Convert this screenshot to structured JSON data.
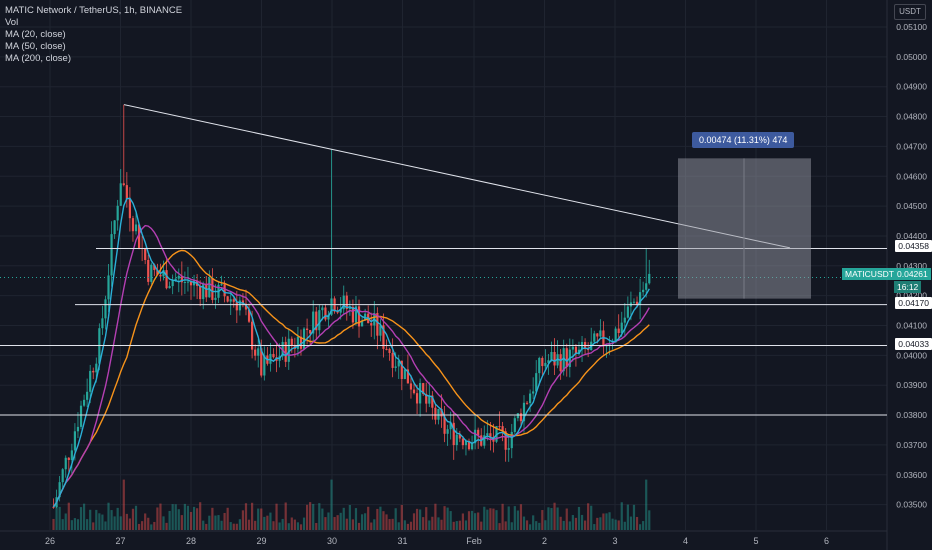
{
  "legend": {
    "title": "MATIC Network / TetherUS, 1h, BINANCE",
    "vol": "Vol",
    "ma20": "MA (20, close)",
    "ma50": "MA (50, close)",
    "ma200": "MA (200, close)"
  },
  "axis": {
    "unit": "USDT",
    "price_ticks": [
      "0.05100",
      "0.05000",
      "0.04900",
      "0.04800",
      "0.04700",
      "0.04600",
      "0.04500",
      "0.04400",
      "0.04300",
      "0.04200",
      "0.04100",
      "0.04000",
      "0.03900",
      "0.03800",
      "0.03700",
      "0.03600",
      "0.03500"
    ],
    "time_ticks": [
      "26",
      "27",
      "28",
      "29",
      "30",
      "31",
      "Feb",
      "2",
      "3",
      "4",
      "5",
      "6"
    ]
  },
  "tags": {
    "level_1": "0.04358",
    "level_2": "0.04170",
    "level_3": "0.04033",
    "symbol": "MATICUSDT",
    "last_price": "0.04261",
    "countdown": "16:12"
  },
  "measure": {
    "label": "0.00474 (11.31%) 474"
  },
  "colors": {
    "up": "#26a69a",
    "down": "#ef5350",
    "ma20": "#2ab0d8",
    "ma50": "#b43fb3",
    "ma200": "#f7931a",
    "background": "#131722"
  },
  "chart_data": {
    "type": "candlestick",
    "symbol": "MATIC Network / TetherUS",
    "interval": "1h",
    "exchange": "BINANCE",
    "x_axis": [
      "26",
      "27",
      "28",
      "29",
      "30",
      "31",
      "Feb",
      "2",
      "3",
      "4",
      "5",
      "6"
    ],
    "ylim": [
      0.0343,
      0.0518
    ],
    "last_price": 0.04261,
    "approx_close_path": [
      {
        "t": "26",
        "price": 0.0345
      },
      {
        "t": "26.7",
        "price": 0.0405
      },
      {
        "t": "27",
        "price": 0.046
      },
      {
        "t": "27.4",
        "price": 0.0428
      },
      {
        "t": "28",
        "price": 0.0424
      },
      {
        "t": "28.7",
        "price": 0.0418
      },
      {
        "t": "29",
        "price": 0.0395
      },
      {
        "t": "29.5",
        "price": 0.0405
      },
      {
        "t": "30",
        "price": 0.0419
      },
      {
        "t": "30.6",
        "price": 0.041
      },
      {
        "t": "31",
        "price": 0.0395
      },
      {
        "t": "31.6",
        "price": 0.0375
      },
      {
        "t": "Feb",
        "price": 0.0372
      },
      {
        "t": "1.5",
        "price": 0.0372
      },
      {
        "t": "2",
        "price": 0.0398
      },
      {
        "t": "2.5",
        "price": 0.04
      },
      {
        "t": "3",
        "price": 0.0407
      },
      {
        "t": "3.5",
        "price": 0.0426
      }
    ],
    "horizontal_levels": [
      0.04358,
      0.0417,
      0.04033,
      0.038
    ],
    "trendline": {
      "from": {
        "t": "27",
        "price": 0.0484
      },
      "to": {
        "t": "5.5",
        "price": 0.0436
      }
    },
    "measure_range": {
      "from": 0.0419,
      "to": 0.0466,
      "change": 0.00474,
      "percent": 11.31,
      "ticks": 474
    }
  }
}
